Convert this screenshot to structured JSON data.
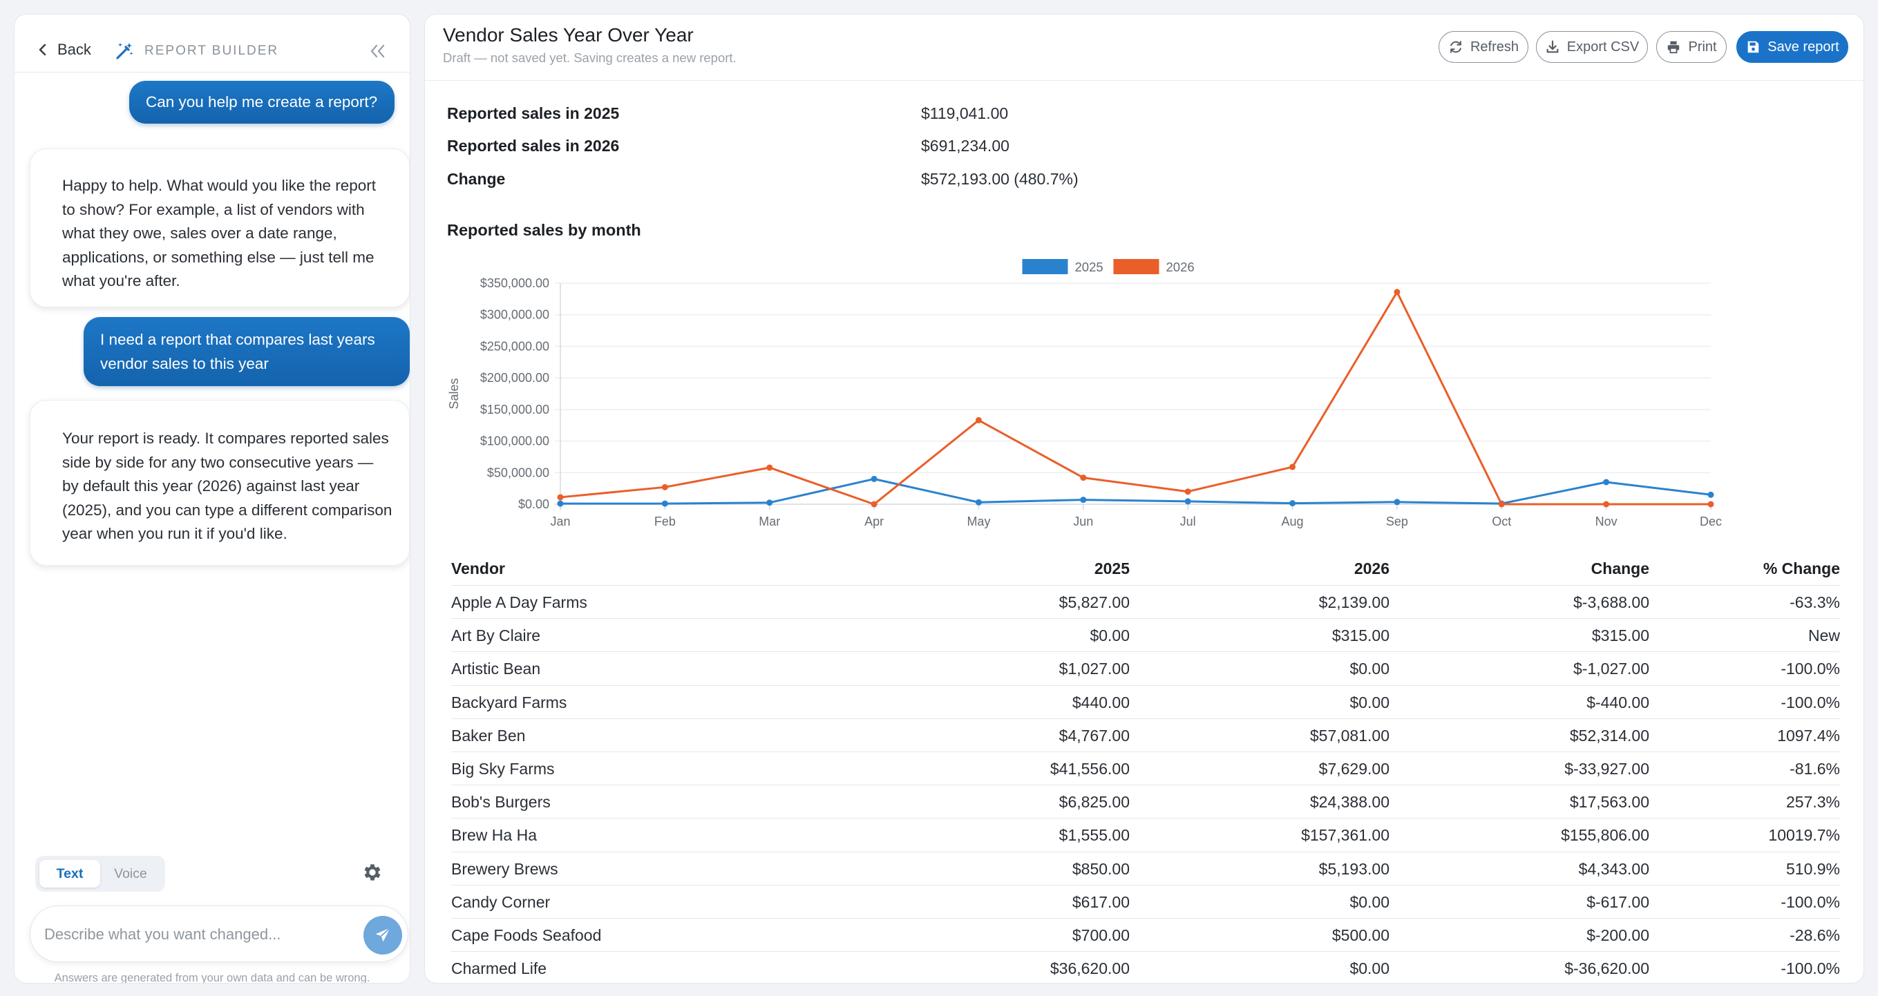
{
  "sidebar": {
    "back_label": "Back",
    "title": "REPORT BUILDER",
    "messages": [
      {
        "role": "user",
        "text": "Can you help me create a report?"
      },
      {
        "role": "assistant",
        "text": "Happy to help. What would you like the report to show? For example, a list of vendors with what they owe, sales over a date range, applications, or something else — just tell me what you're after."
      },
      {
        "role": "user",
        "text": "I need a report that compares last years vendor sales to this year"
      },
      {
        "role": "assistant",
        "text": "Your report is ready. It compares reported sales side by side for any two consecutive years — by default this year (2026) against last year (2025), and you can type a different comparison year when you run it if you'd like."
      }
    ],
    "modes": {
      "text": "Text",
      "voice": "Voice",
      "active": "Text"
    },
    "input_placeholder": "Describe what you want changed...",
    "disclaimer": "Answers are generated from your own data and can be wrong."
  },
  "report": {
    "title": "Vendor Sales Year Over Year",
    "subtitle": "Draft — not saved yet. Saving creates a new report.",
    "toolbar": {
      "refresh": "Refresh",
      "export": "Export CSV",
      "print": "Print",
      "save": "Save report"
    },
    "summary": [
      {
        "label": "Reported sales in 2025",
        "value": "$119,041.00"
      },
      {
        "label": "Reported sales in 2026",
        "value": "$691,234.00"
      },
      {
        "label": "Change",
        "value": "$572,193.00 (480.7%)"
      }
    ],
    "chart_heading": "Reported sales by month",
    "table": {
      "headers": {
        "vendor": "Vendor",
        "y2025": "2025",
        "y2026": "2026",
        "change": "Change",
        "pct": "% Change"
      },
      "rows": [
        {
          "vendor": "Apple A Day Farms",
          "y2025": "$5,827.00",
          "y2026": "$2,139.00",
          "change": "$-3,688.00",
          "pct": "-63.3%"
        },
        {
          "vendor": "Art By Claire",
          "y2025": "$0.00",
          "y2026": "$315.00",
          "change": "$315.00",
          "pct": "New"
        },
        {
          "vendor": "Artistic Bean",
          "y2025": "$1,027.00",
          "y2026": "$0.00",
          "change": "$-1,027.00",
          "pct": "-100.0%"
        },
        {
          "vendor": "Backyard Farms",
          "y2025": "$440.00",
          "y2026": "$0.00",
          "change": "$-440.00",
          "pct": "-100.0%"
        },
        {
          "vendor": "Baker Ben",
          "y2025": "$4,767.00",
          "y2026": "$57,081.00",
          "change": "$52,314.00",
          "pct": "1097.4%"
        },
        {
          "vendor": "Big Sky Farms",
          "y2025": "$41,556.00",
          "y2026": "$7,629.00",
          "change": "$-33,927.00",
          "pct": "-81.6%"
        },
        {
          "vendor": "Bob's Burgers",
          "y2025": "$6,825.00",
          "y2026": "$24,388.00",
          "change": "$17,563.00",
          "pct": "257.3%"
        },
        {
          "vendor": "Brew Ha Ha",
          "y2025": "$1,555.00",
          "y2026": "$157,361.00",
          "change": "$155,806.00",
          "pct": "10019.7%"
        },
        {
          "vendor": "Brewery Brews",
          "y2025": "$850.00",
          "y2026": "$5,193.00",
          "change": "$4,343.00",
          "pct": "510.9%"
        },
        {
          "vendor": "Candy Corner",
          "y2025": "$617.00",
          "y2026": "$0.00",
          "change": "$-617.00",
          "pct": "-100.0%"
        },
        {
          "vendor": "Cape Foods Seafood",
          "y2025": "$700.00",
          "y2026": "$500.00",
          "change": "$-200.00",
          "pct": "-28.6%"
        },
        {
          "vendor": "Charmed Life",
          "y2025": "$36,620.00",
          "y2026": "$0.00",
          "change": "$-36,620.00",
          "pct": "-100.0%"
        }
      ]
    }
  },
  "colors": {
    "accent": "#1a73c9",
    "series_2025": "#2a82cf",
    "series_2026": "#ea5e2a"
  },
  "chart_data": {
    "type": "line",
    "title": "",
    "xlabel": "",
    "ylabel": "Sales",
    "categories": [
      "Jan",
      "Feb",
      "Mar",
      "Apr",
      "May",
      "Jun",
      "Jul",
      "Aug",
      "Sep",
      "Oct",
      "Nov",
      "Dec"
    ],
    "ylim": [
      0,
      350000
    ],
    "yticks": [
      "$0.00",
      "$50,000.00",
      "$100,000.00",
      "$150,000.00",
      "$200,000.00",
      "$250,000.00",
      "$300,000.00",
      "$350,000.00"
    ],
    "legend_position": "top-center",
    "grid": true,
    "series": [
      {
        "name": "2025",
        "color": "#2a82cf",
        "values": [
          1000,
          1000,
          2500,
          40000,
          3000,
          7000,
          4500,
          1500,
          3500,
          1000,
          35000,
          15000
        ]
      },
      {
        "name": "2026",
        "color": "#ea5e2a",
        "values": [
          11000,
          27000,
          58000,
          0,
          133000,
          42000,
          20000,
          59000,
          336000,
          0,
          0,
          0
        ]
      }
    ]
  }
}
